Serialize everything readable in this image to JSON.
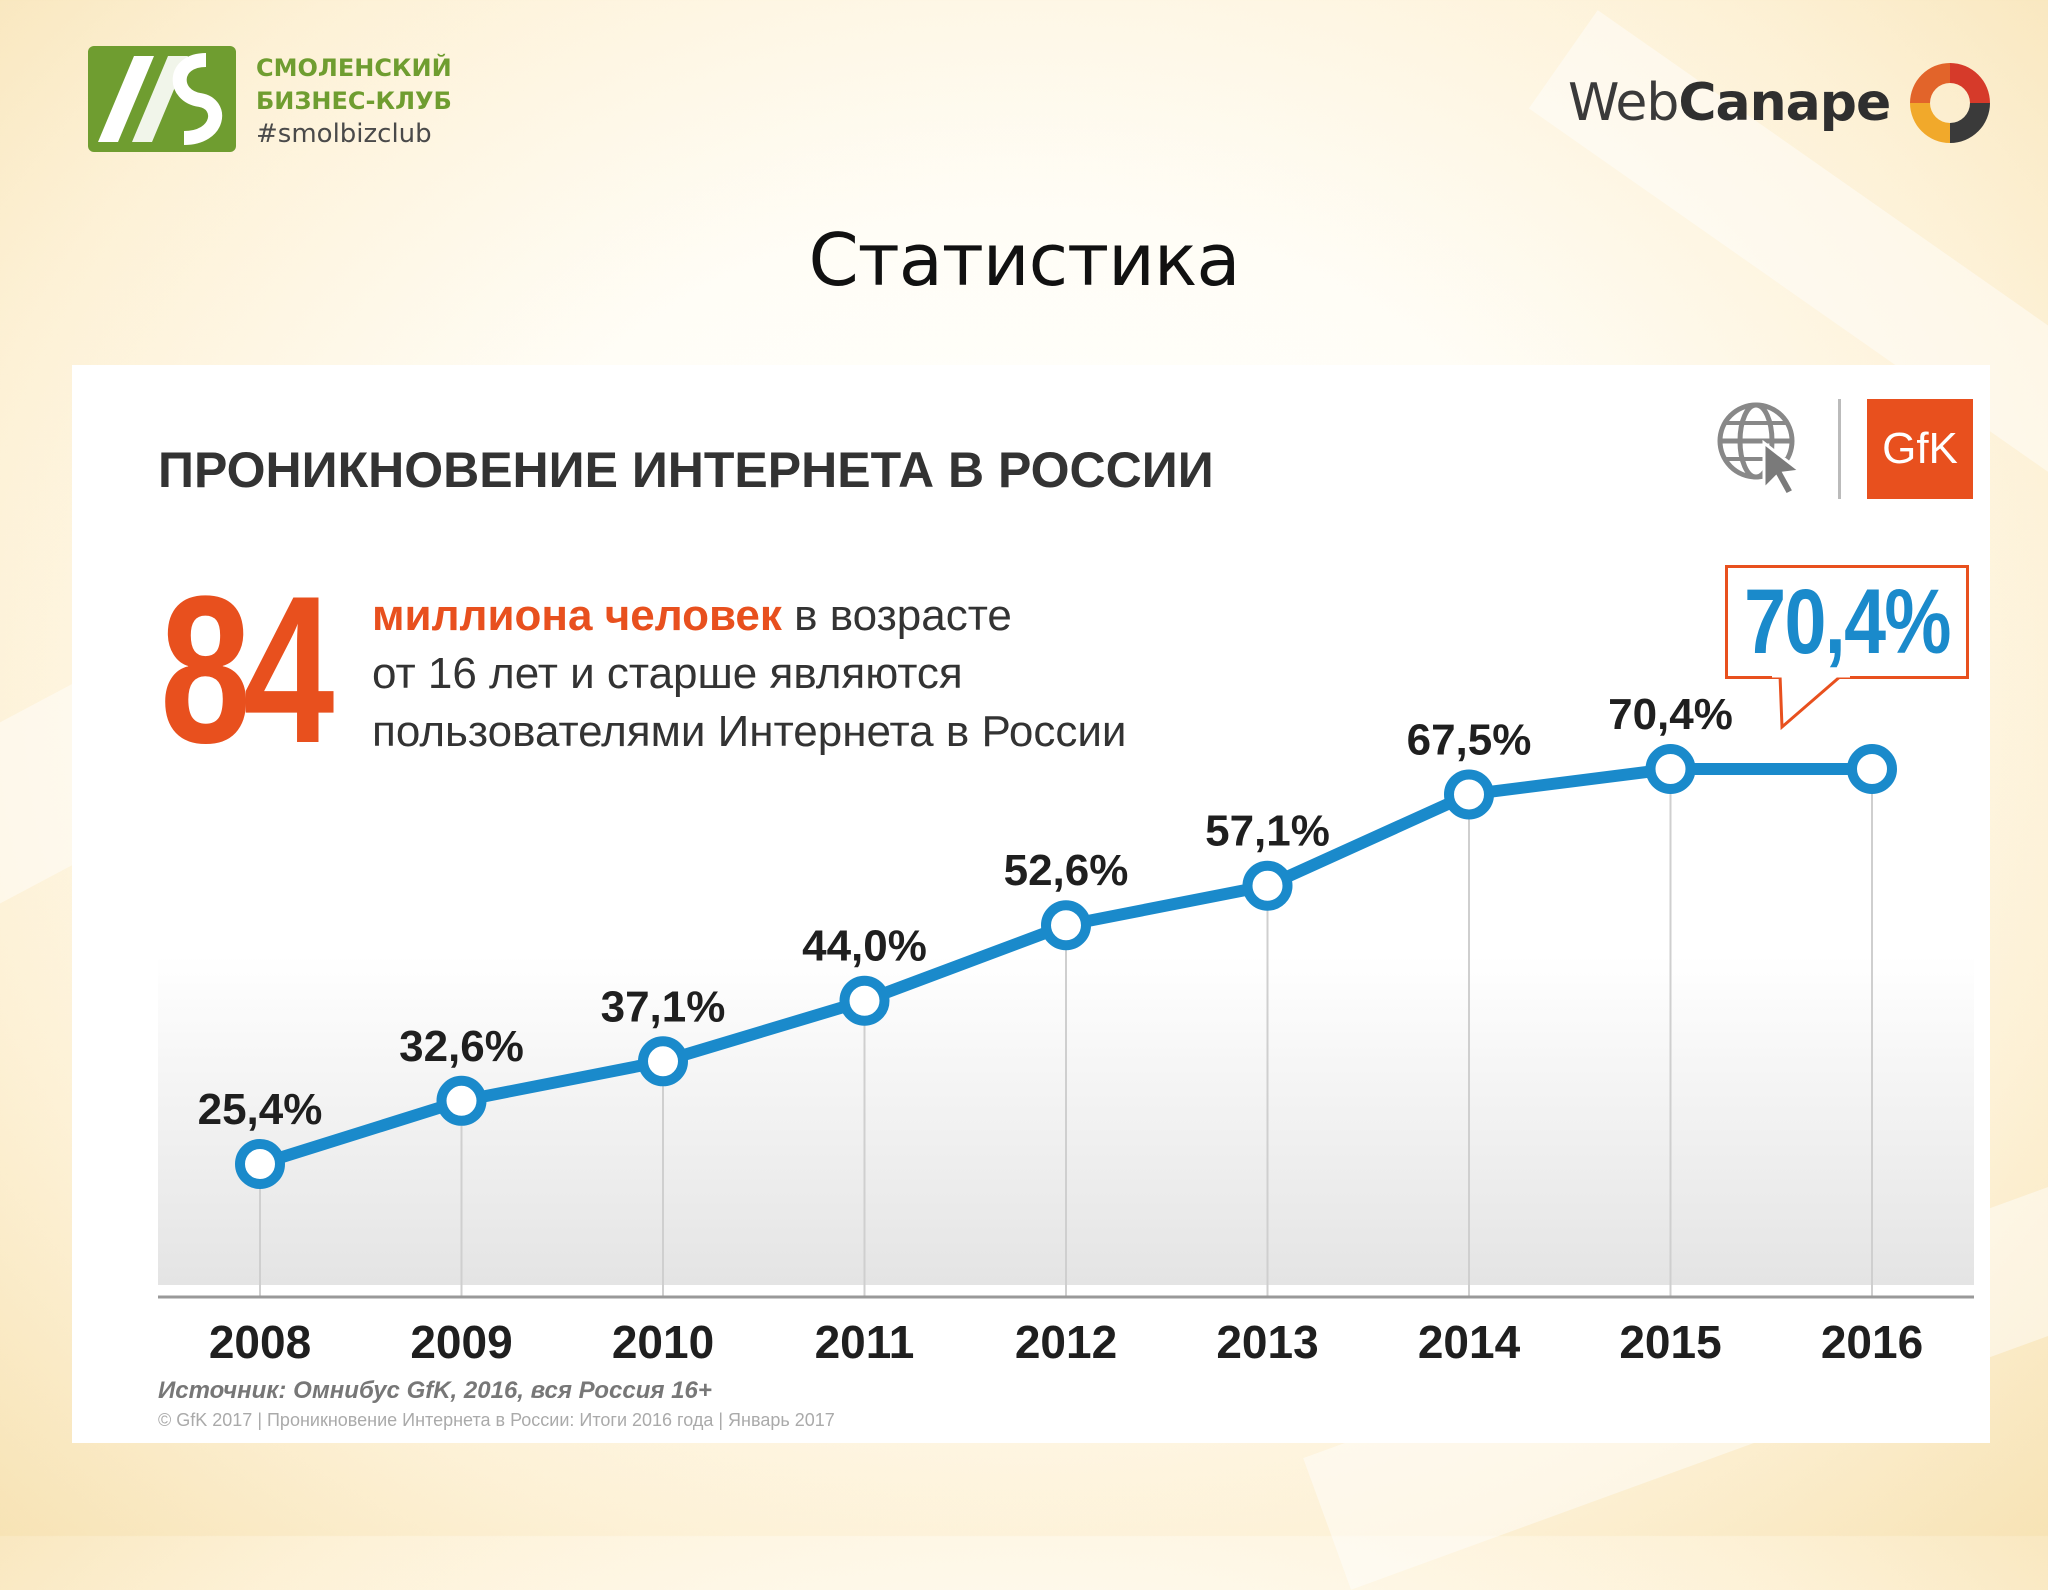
{
  "header": {
    "club": {
      "line1": "СМОЛЕНСКИЙ",
      "line2": "БИЗНЕС-КЛУБ",
      "hashtag": "#smolbizclub",
      "logo_icon": "zs-logo-icon",
      "color": "#6f9d30"
    },
    "partner": {
      "name_light": "Web",
      "name_bold": "Canape",
      "mark_icon": "webcanape-swirl-icon"
    }
  },
  "page_title": "Статистика",
  "panel": {
    "globe_icon": "globe-cursor-icon",
    "gfk_logo": "GfK",
    "big_number": "84",
    "desc_highlight": "миллиона человек",
    "desc_rest_line1": " в возрасте",
    "desc_line2": "от 16 лет и старше являются",
    "desc_line3": "пользователями Интернета в России",
    "callout_value": "70,4%",
    "source": "Источник: Омнибус GfK, 2016, вся Россия 16+",
    "copyright": "© GfK 2017 | Проникновение Интернета в России: Итоги 2016 года | Январь 2017",
    "accent_color": "#e8501e",
    "line_color": "#1a8acb"
  },
  "chart_data": {
    "type": "line",
    "title": "ПРОНИКНОВЕНИЕ ИНТЕРНЕТА В РОССИИ",
    "categories": [
      "2008",
      "2009",
      "2010",
      "2011",
      "2012",
      "2013",
      "2014",
      "2015",
      "2016"
    ],
    "values": [
      25.4,
      32.6,
      37.1,
      44.0,
      52.6,
      57.1,
      67.5,
      70.4,
      70.4
    ],
    "labels": [
      "25,4%",
      "32,6%",
      "37,1%",
      "44,0%",
      "52,6%",
      "57,1%",
      "67,5%",
      "70,4%",
      ""
    ],
    "xlabel": "",
    "ylabel": "",
    "ylim": [
      0,
      100
    ],
    "grid": "vertical drop lines",
    "legend": "none"
  }
}
